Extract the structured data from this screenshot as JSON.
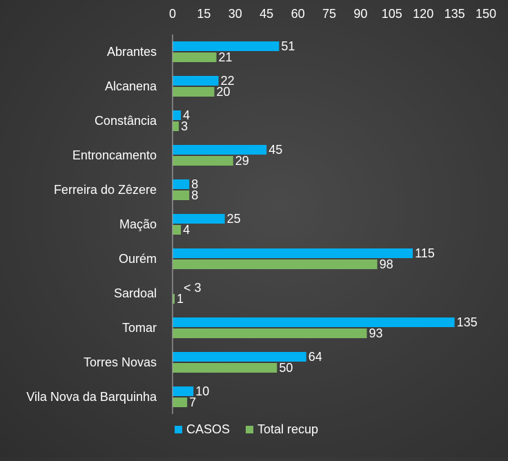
{
  "chart_data": {
    "type": "bar",
    "orientation": "horizontal",
    "categories": [
      "Abrantes",
      "Alcanena",
      "Constância",
      "Entroncamento",
      "Ferreira do Zêzere",
      "Mação",
      "Ourém",
      "Sardoal",
      "Tomar",
      "Torres Novas",
      "Vila Nova da Barquinha"
    ],
    "series": [
      {
        "name": "CASOS",
        "color": "#00b0f0",
        "values": [
          51,
          22,
          4,
          45,
          8,
          25,
          115,
          0,
          135,
          64,
          10
        ],
        "labels": [
          "51",
          "22",
          "4",
          "45",
          "8",
          "25",
          "115",
          "< 3",
          "135",
          "64",
          "10"
        ]
      },
      {
        "name": "Total recup",
        "color": "#7cb860",
        "values": [
          21,
          20,
          3,
          29,
          8,
          4,
          98,
          1,
          93,
          50,
          7
        ],
        "labels": [
          "21",
          "20",
          "3",
          "29",
          "8",
          "4",
          "98",
          "1",
          "93",
          "50",
          "7"
        ]
      }
    ],
    "xlim": [
      0,
      150
    ],
    "xticks": [
      "0",
      "15",
      "30",
      "45",
      "60",
      "75",
      "90",
      "105",
      "120",
      "135",
      "150"
    ],
    "x_axis_position": "top",
    "grid": false,
    "legend_position": "bottom"
  }
}
